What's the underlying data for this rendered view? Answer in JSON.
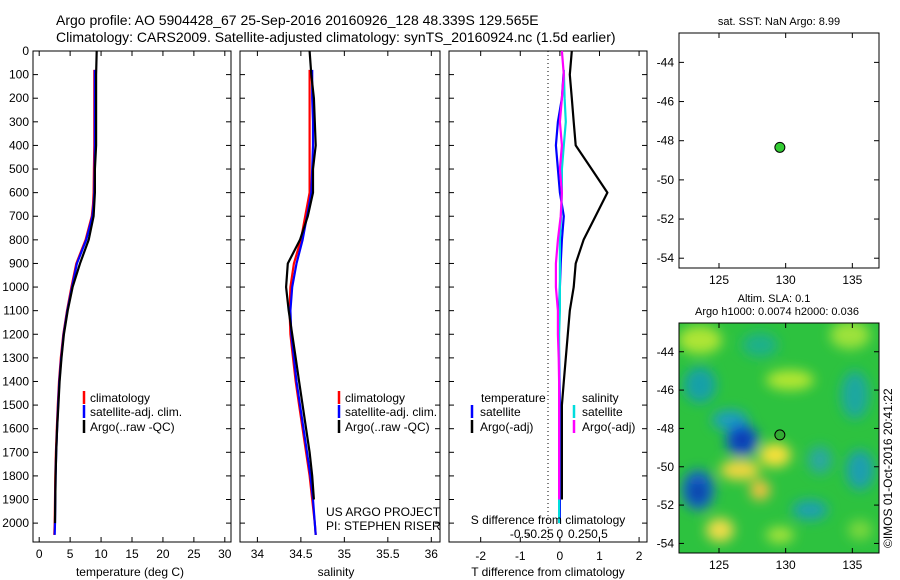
{
  "header": {
    "line1": "Argo profile: AO 5904428_67 25-Sep-2016 20160926_128 48.339S 129.565E",
    "line2": "Climatology: CARS2009. Satellite-adjusted climatology: synTS_20160924.nc (1.5d earlier)"
  },
  "chart_data": [
    {
      "type": "line",
      "id": "temperature-profile",
      "xlabel": "temperature (deg C)",
      "ylabel": "",
      "xlim": [
        -1,
        31
      ],
      "ylim": [
        2080,
        0
      ],
      "xticks": [
        "0",
        "5",
        "10",
        "15",
        "20",
        "25",
        "30"
      ],
      "yticks": [
        "0",
        "100",
        "200",
        "300",
        "400",
        "500",
        "600",
        "700",
        "800",
        "900",
        "1000",
        "1100",
        "1200",
        "1300",
        "1400",
        "1500",
        "1600",
        "1700",
        "1800",
        "1900",
        "2000"
      ],
      "legend": [
        "climatology",
        "satellite-adj. clim.",
        "Argo(..raw -QC)"
      ],
      "series": [
        {
          "name": "climatology",
          "color": "#ff0000",
          "x": [
            8.9,
            8.9,
            8.9,
            8.85,
            8.8,
            8.7,
            8.5,
            7.5,
            6.0,
            5.2,
            4.5,
            3.9,
            3.5,
            3.2,
            3.0,
            2.85,
            2.7,
            2.6,
            2.55,
            2.5,
            2.45
          ],
          "y": [
            80,
            200,
            400,
            500,
            600,
            650,
            700,
            800,
            900,
            1000,
            1100,
            1200,
            1300,
            1400,
            1500,
            1600,
            1700,
            1800,
            1900,
            2000,
            2050
          ]
        },
        {
          "name": "satellite-adj. clim.",
          "color": "#0000ff",
          "x": [
            9.0,
            9.0,
            9.0,
            8.95,
            8.9,
            8.8,
            8.6,
            7.6,
            6.1,
            5.3,
            4.55,
            3.95,
            3.55,
            3.25,
            3.05,
            2.9,
            2.75,
            2.65,
            2.6,
            2.55,
            2.5
          ],
          "y": [
            80,
            200,
            400,
            500,
            600,
            650,
            700,
            800,
            900,
            1000,
            1100,
            1200,
            1300,
            1400,
            1500,
            1600,
            1700,
            1800,
            1900,
            2000,
            2050
          ]
        },
        {
          "name": "Argo(..raw -QC)",
          "color": "#000000",
          "x": [
            9.3,
            9.2,
            9.2,
            9.2,
            9.0,
            9.0,
            8.8,
            8.0,
            6.6,
            5.4,
            4.6,
            4.0,
            3.6,
            3.3,
            3.1,
            2.9,
            2.75,
            2.65,
            2.6,
            2.55
          ],
          "y": [
            0,
            100,
            200,
            400,
            500,
            600,
            700,
            800,
            900,
            1000,
            1100,
            1200,
            1300,
            1400,
            1500,
            1600,
            1700,
            1800,
            1900,
            2000
          ]
        }
      ]
    },
    {
      "type": "line",
      "id": "salinity-profile",
      "xlabel": "salinity",
      "ylabel": "",
      "xlim": [
        33.8,
        36.1
      ],
      "ylim": [
        2080,
        0
      ],
      "xticks": [
        "34",
        "34.5",
        "35",
        "35.5",
        "36"
      ],
      "legend": [
        "climatology",
        "satellite-adj. clim.",
        "Argo(..raw -QC)"
      ],
      "annotations": [
        "US ARGO PROJECT",
        "PI: STEPHEN RISER"
      ],
      "series": [
        {
          "name": "climatology",
          "color": "#ff0000",
          "x": [
            34.6,
            34.6,
            34.6,
            34.6,
            34.6,
            34.6,
            34.55,
            34.5,
            34.42,
            34.38,
            34.37,
            34.38,
            34.41,
            34.44,
            34.48,
            34.52,
            34.56,
            34.6,
            34.63,
            34.66,
            34.67
          ],
          "y": [
            80,
            200,
            300,
            400,
            500,
            600,
            700,
            800,
            900,
            1000,
            1100,
            1200,
            1300,
            1400,
            1500,
            1600,
            1700,
            1800,
            1900,
            2000,
            2050
          ]
        },
        {
          "name": "satellite-adj. clim.",
          "color": "#0000ff",
          "x": [
            34.63,
            34.63,
            34.64,
            34.64,
            34.63,
            34.62,
            34.57,
            34.52,
            34.45,
            34.4,
            34.38,
            34.39,
            34.42,
            34.45,
            34.49,
            34.53,
            34.57,
            34.61,
            34.64,
            34.66,
            34.67
          ],
          "y": [
            80,
            200,
            300,
            400,
            500,
            600,
            700,
            800,
            900,
            1000,
            1100,
            1200,
            1300,
            1400,
            1500,
            1600,
            1700,
            1800,
            1900,
            2000,
            2050
          ]
        },
        {
          "name": "Argo(..raw -QC)",
          "color": "#000000",
          "x": [
            34.6,
            34.62,
            34.65,
            34.66,
            34.67,
            34.64,
            34.64,
            34.58,
            34.49,
            34.35,
            34.33,
            34.36,
            34.4,
            34.44,
            34.48,
            34.52,
            34.56,
            34.6,
            34.63,
            34.65
          ],
          "y": [
            0,
            100,
            200,
            300,
            400,
            500,
            600,
            700,
            800,
            900,
            1000,
            1100,
            1200,
            1300,
            1400,
            1500,
            1600,
            1700,
            1800,
            1900
          ]
        }
      ]
    },
    {
      "type": "line",
      "id": "difference-profile",
      "xlabel": "T difference from climatology",
      "xlabel_top": "S difference from climatology",
      "xlim": [
        -2.8,
        2.2
      ],
      "ylim": [
        2080,
        0
      ],
      "xticks": [
        "-2",
        "-1",
        "0",
        "1",
        "2"
      ],
      "xticks_s": [
        "-0.5",
        "-0.25",
        "0",
        "0.25",
        "0.5"
      ],
      "legend_groups": [
        {
          "title": "temperature",
          "items": [
            "satellite",
            "Argo(-adj)"
          ]
        },
        {
          "title": "salinity",
          "items": [
            "satellite",
            "Argo(-adj)"
          ]
        }
      ],
      "series": [
        {
          "name": "temperature satellite",
          "color": "#0000ff",
          "x": [
            0.1,
            0.05,
            -0.05,
            -0.1,
            -0.05,
            0.0,
            0.1,
            0.05,
            0.02,
            0.0,
            -0.02,
            -0.03,
            -0.02,
            -0.01,
            0.0,
            0.0,
            0.0,
            0.0,
            0.0,
            0.0
          ],
          "y": [
            80,
            200,
            300,
            400,
            500,
            600,
            700,
            800,
            900,
            1000,
            1100,
            1200,
            1300,
            1400,
            1500,
            1600,
            1700,
            1800,
            1900,
            2000
          ]
        },
        {
          "name": "temperature Argo(-adj)",
          "color": "#000000",
          "x": [
            0.3,
            0.25,
            0.3,
            0.35,
            0.4,
            0.8,
            1.2,
            0.9,
            0.6,
            0.4,
            0.35,
            0.25,
            0.2,
            0.15,
            0.1,
            0.05,
            0.05,
            0.05,
            0.05,
            0.05
          ],
          "y": [
            0,
            100,
            200,
            300,
            400,
            500,
            600,
            700,
            800,
            900,
            1000,
            1100,
            1200,
            1300,
            1400,
            1500,
            1600,
            1700,
            1800,
            1900
          ]
        },
        {
          "name": "salinity satellite",
          "color": "#00dddd",
          "x": [
            0.1,
            0.12,
            0.15,
            0.1,
            0.05,
            0.05,
            0.03,
            0.0,
            0.0,
            0.0,
            0.0,
            -0.02,
            -0.02,
            -0.02,
            -0.02,
            -0.02,
            -0.02,
            -0.02,
            -0.02,
            -0.02
          ],
          "y": [
            80,
            200,
            300,
            400,
            500,
            600,
            700,
            800,
            900,
            1000,
            1100,
            1200,
            1300,
            1400,
            1500,
            1600,
            1700,
            1800,
            1900,
            2000
          ]
        },
        {
          "name": "salinity Argo(-adj)",
          "color": "#ff00ff",
          "x": [
            0.05,
            0.1,
            0.05,
            0.0,
            0.05,
            0.0,
            0.05,
            0.02,
            -0.05,
            -0.1,
            -0.1,
            -0.05,
            -0.05,
            -0.03,
            -0.02,
            -0.02,
            -0.02,
            -0.02,
            -0.02,
            -0.02
          ],
          "y": [
            0,
            100,
            200,
            300,
            400,
            500,
            600,
            700,
            800,
            900,
            1000,
            1100,
            1200,
            1300,
            1400,
            1500,
            1600,
            1700,
            1800,
            1900
          ]
        }
      ]
    },
    {
      "type": "scatter",
      "id": "sst-map",
      "title": "sat. SST: NaN Argo: 8.99",
      "xlim": [
        122,
        137
      ],
      "ylim": [
        -54.5,
        -42.5
      ],
      "xticks": [
        "125",
        "130",
        "135"
      ],
      "yticks": [
        "-44",
        "-46",
        "-48",
        "-50",
        "-52",
        "-54"
      ],
      "points": [
        {
          "x": 129.565,
          "y": -48.339,
          "color": "#33cc33"
        }
      ]
    },
    {
      "type": "heatmap",
      "id": "sla-map",
      "title": "Altim. SLA: 0.1",
      "subtitle": "Argo h1000: 0.0074 h2000: 0.036",
      "xlim": [
        122,
        137
      ],
      "ylim": [
        -54.5,
        -42.5
      ],
      "xticks": [
        "125",
        "130",
        "135"
      ],
      "yticks": [
        "-44",
        "-46",
        "-48",
        "-50",
        "-52",
        "-54"
      ],
      "colors": {
        "low": "#0033cc",
        "mid": "#22cc44",
        "high": "#ffdd00"
      },
      "points": [
        {
          "x": 129.565,
          "y": -48.339,
          "color": "#33aa33"
        }
      ]
    }
  ],
  "watermark": "©IMOS 01-Oct-2016 20:41:22"
}
